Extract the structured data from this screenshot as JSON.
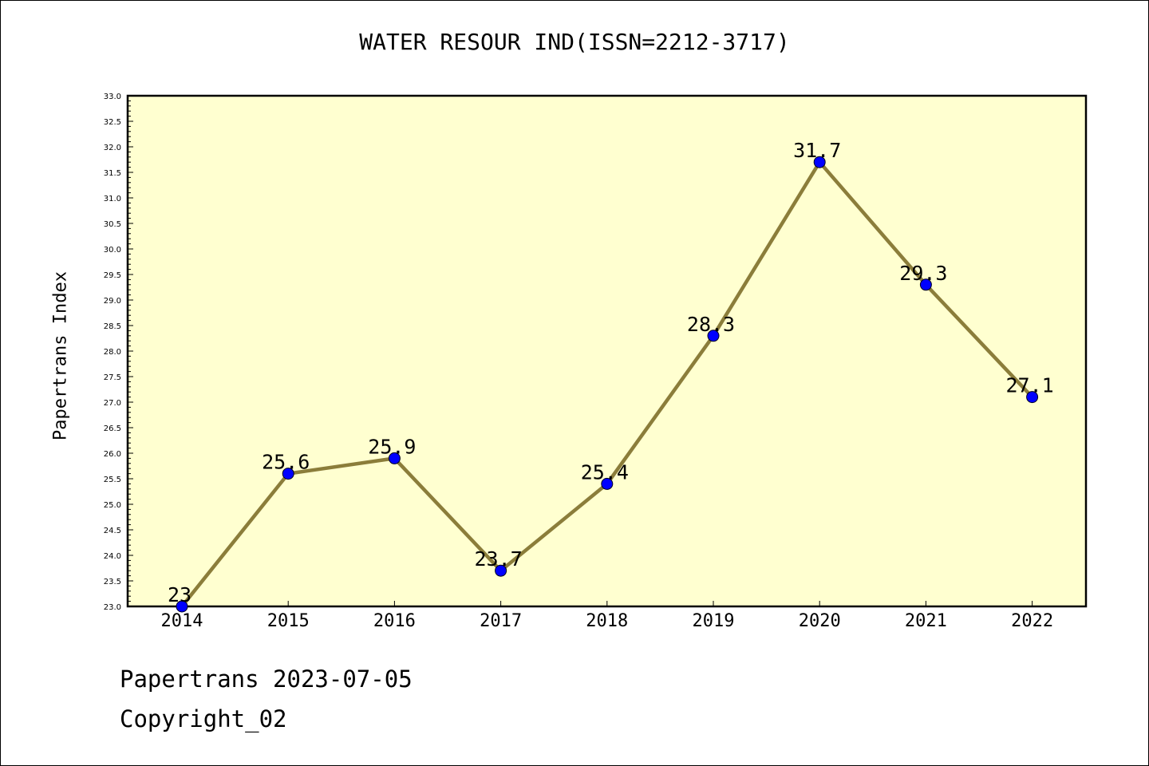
{
  "chart_data": {
    "type": "line",
    "title": "WATER RESOUR IND(ISSN=2212-3717)",
    "xlabel": "",
    "ylabel": "Papertrans Index",
    "categories": [
      "2014",
      "2015",
      "2016",
      "2017",
      "2018",
      "2019",
      "2020",
      "2021",
      "2022"
    ],
    "series": [
      {
        "values": [
          23,
          25.6,
          25.9,
          23.7,
          25.4,
          28.3,
          31.7,
          29.3,
          27.1
        ],
        "labels": [
          "23",
          "25.6",
          "25.9",
          "23.7",
          "25.4",
          "28.3",
          "31.7",
          "29.3",
          "27.1"
        ]
      }
    ],
    "ylim": [
      23.0,
      33.0
    ],
    "yticks": [
      "23.0",
      "23.5",
      "24.0",
      "24.5",
      "25.0",
      "25.5",
      "26.0",
      "26.5",
      "27.0",
      "27.5",
      "28.0",
      "28.5",
      "29.0",
      "29.5",
      "30.0",
      "30.5",
      "31.0",
      "31.5",
      "32.0",
      "32.5",
      "33.0"
    ],
    "grid": false,
    "colors": {
      "plot_background": "#ffffd0",
      "line": "#8b7d3a",
      "marker": "#0000ff"
    }
  },
  "footer": {
    "date": "Papertrans 2023-07-05",
    "copyright": "Copyright_02"
  }
}
